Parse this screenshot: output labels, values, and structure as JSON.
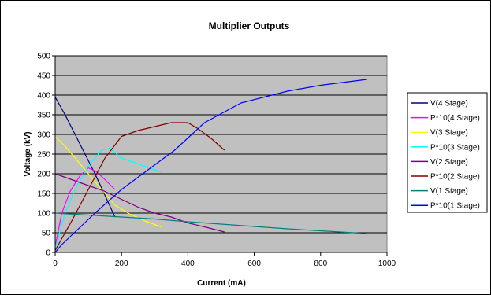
{
  "chart_data": {
    "type": "line",
    "title": "Multiplier Outputs",
    "xlabel": "Current (mA)",
    "ylabel": "Voltage (kV)",
    "xlim": [
      0,
      1000
    ],
    "ylim": [
      0,
      500
    ],
    "xticks": [
      0,
      200,
      400,
      600,
      800,
      1000
    ],
    "yticks": [
      0,
      50,
      100,
      150,
      200,
      250,
      300,
      350,
      400,
      450,
      500
    ],
    "grid": true,
    "legend": "right",
    "plot_background": "#c0c0c0",
    "series": [
      {
        "name": "V(4 Stage)",
        "color": "#000080",
        "points": [
          [
            0,
            395
          ],
          [
            30,
            350
          ],
          [
            60,
            300
          ],
          [
            90,
            250
          ],
          [
            120,
            200
          ],
          [
            150,
            145
          ],
          [
            180,
            90
          ]
        ]
      },
      {
        "name": "P*10(4 Stage)",
        "color": "#ff00ff",
        "points": [
          [
            0,
            15
          ],
          [
            20,
            100
          ],
          [
            45,
            155
          ],
          [
            75,
            195
          ],
          [
            100,
            215
          ],
          [
            125,
            205
          ],
          [
            150,
            185
          ],
          [
            180,
            160
          ]
        ]
      },
      {
        "name": "V(3 Stage)",
        "color": "#ffff00",
        "points": [
          [
            0,
            295
          ],
          [
            30,
            270
          ],
          [
            60,
            240
          ],
          [
            90,
            210
          ],
          [
            120,
            180
          ],
          [
            150,
            150
          ],
          [
            180,
            120
          ],
          [
            220,
            100
          ],
          [
            270,
            80
          ],
          [
            320,
            65
          ]
        ]
      },
      {
        "name": "P*10(3 Stage)",
        "color": "#00ffff",
        "points": [
          [
            0,
            10
          ],
          [
            30,
            100
          ],
          [
            60,
            160
          ],
          [
            100,
            220
          ],
          [
            140,
            260
          ],
          [
            165,
            265
          ],
          [
            200,
            240
          ],
          [
            250,
            225
          ],
          [
            300,
            210
          ],
          [
            320,
            205
          ]
        ]
      },
      {
        "name": "V(2 Stage)",
        "color": "#800080",
        "points": [
          [
            0,
            200
          ],
          [
            50,
            185
          ],
          [
            100,
            170
          ],
          [
            150,
            155
          ],
          [
            200,
            135
          ],
          [
            250,
            115
          ],
          [
            300,
            100
          ],
          [
            350,
            90
          ],
          [
            400,
            75
          ],
          [
            450,
            65
          ],
          [
            510,
            52
          ]
        ]
      },
      {
        "name": "P*10(2 Stage)",
        "color": "#800000",
        "points": [
          [
            0,
            5
          ],
          [
            50,
            80
          ],
          [
            100,
            160
          ],
          [
            150,
            240
          ],
          [
            200,
            295
          ],
          [
            250,
            310
          ],
          [
            300,
            320
          ],
          [
            350,
            330
          ],
          [
            400,
            330
          ],
          [
            430,
            315
          ],
          [
            470,
            290
          ],
          [
            510,
            260
          ]
        ]
      },
      {
        "name": "V(1 Stage)",
        "color": "#008080",
        "points": [
          [
            0,
            100
          ],
          [
            100,
            95
          ],
          [
            200,
            90
          ],
          [
            300,
            85
          ],
          [
            400,
            78
          ],
          [
            500,
            72
          ],
          [
            600,
            66
          ],
          [
            700,
            60
          ],
          [
            800,
            55
          ],
          [
            900,
            50
          ],
          [
            940,
            47
          ]
        ]
      },
      {
        "name": "P*10(1 Stage)",
        "color": "#0000ff",
        "points": [
          [
            0,
            0
          ],
          [
            20,
            20
          ],
          [
            70,
            60
          ],
          [
            120,
            100
          ],
          [
            200,
            160
          ],
          [
            280,
            210
          ],
          [
            360,
            260
          ],
          [
            450,
            330
          ],
          [
            560,
            380
          ],
          [
            700,
            410
          ],
          [
            800,
            425
          ],
          [
            940,
            440
          ]
        ]
      }
    ]
  }
}
